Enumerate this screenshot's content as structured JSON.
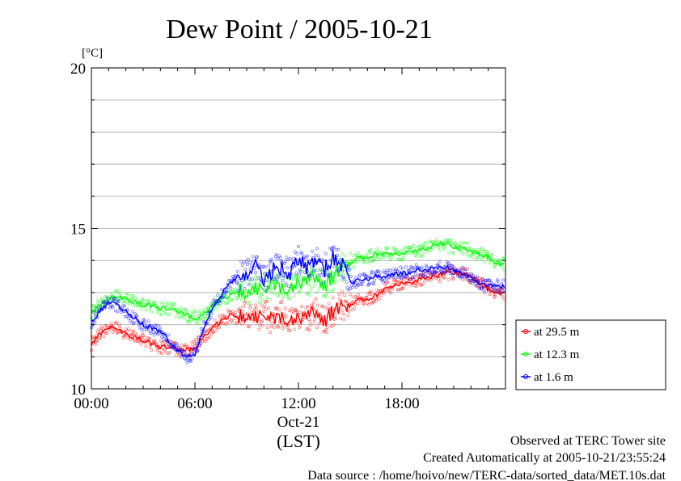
{
  "chart_data": {
    "type": "scatter",
    "title": "Dew Point / 2005-10-21",
    "ylabel": "[°C]",
    "xlabel": "(LST)",
    "x_date_label": "Oct-21",
    "xlim": [
      "00:00",
      "24:00"
    ],
    "ylim": [
      10,
      20
    ],
    "x_ticks": [
      "00:00",
      "06:00",
      "12:00",
      "18:00"
    ],
    "y_ticks": [
      "10",
      "15",
      "20"
    ],
    "grid": true,
    "legend_position": "right",
    "series": [
      {
        "name": "at 29.5 m",
        "color": "#ff0000",
        "x": [
          "00:00",
          "00:30",
          "01:00",
          "01:30",
          "02:00",
          "02:30",
          "03:00",
          "03:30",
          "04:00",
          "04:30",
          "05:00",
          "05:30",
          "06:00",
          "06:30",
          "07:00",
          "07:30",
          "08:00",
          "08:30",
          "09:00",
          "09:30",
          "10:00",
          "10:30",
          "11:00",
          "11:30",
          "12:00",
          "12:30",
          "13:00",
          "13:30",
          "14:00",
          "14:30",
          "15:00",
          "15:30",
          "16:00",
          "16:30",
          "17:00",
          "17:30",
          "18:00",
          "18:30",
          "19:00",
          "19:30",
          "20:00",
          "20:30",
          "21:00",
          "21:30",
          "22:00",
          "22:30",
          "23:00",
          "23:30"
        ],
        "values": [
          11.4,
          11.7,
          11.9,
          11.9,
          11.7,
          11.6,
          11.5,
          11.4,
          11.3,
          11.3,
          11.2,
          11.2,
          11.3,
          11.6,
          11.9,
          12.1,
          12.3,
          12.2,
          12.3,
          12.2,
          12.4,
          12.1,
          12.3,
          12.0,
          12.3,
          12.2,
          12.4,
          12.1,
          12.4,
          12.6,
          12.6,
          12.8,
          12.8,
          12.9,
          13.1,
          13.2,
          13.3,
          13.3,
          13.4,
          13.5,
          13.5,
          13.6,
          13.6,
          13.6,
          13.5,
          13.3,
          13.1,
          13.0
        ]
      },
      {
        "name": "at 12.3 m",
        "color": "#00ff00",
        "x": [
          "00:00",
          "00:30",
          "01:00",
          "01:30",
          "02:00",
          "02:30",
          "03:00",
          "03:30",
          "04:00",
          "04:30",
          "05:00",
          "05:30",
          "06:00",
          "06:30",
          "07:00",
          "07:30",
          "08:00",
          "08:30",
          "09:00",
          "09:30",
          "10:00",
          "10:30",
          "11:00",
          "11:30",
          "12:00",
          "12:30",
          "13:00",
          "13:30",
          "14:00",
          "14:30",
          "15:00",
          "15:30",
          "16:00",
          "16:30",
          "17:00",
          "17:30",
          "18:00",
          "18:30",
          "19:00",
          "19:30",
          "20:00",
          "20:30",
          "21:00",
          "21:30",
          "22:00",
          "22:30",
          "23:00",
          "23:30"
        ],
        "values": [
          12.4,
          12.6,
          12.8,
          12.9,
          12.8,
          12.7,
          12.6,
          12.6,
          12.5,
          12.5,
          12.4,
          12.3,
          12.2,
          12.3,
          12.6,
          12.8,
          12.9,
          13.0,
          13.0,
          13.1,
          13.2,
          13.2,
          13.2,
          13.0,
          13.4,
          13.3,
          13.5,
          13.2,
          13.5,
          13.8,
          13.9,
          14.1,
          14.1,
          14.2,
          14.2,
          14.2,
          14.2,
          14.3,
          14.3,
          14.4,
          14.5,
          14.5,
          14.4,
          14.4,
          14.3,
          14.2,
          14.1,
          13.9
        ]
      },
      {
        "name": "at 1.6 m",
        "color": "#0000ff",
        "x": [
          "00:00",
          "00:30",
          "01:00",
          "01:30",
          "02:00",
          "02:30",
          "03:00",
          "03:30",
          "04:00",
          "04:30",
          "05:00",
          "05:30",
          "06:00",
          "06:30",
          "07:00",
          "07:30",
          "08:00",
          "08:30",
          "09:00",
          "09:30",
          "10:00",
          "10:30",
          "11:00",
          "11:30",
          "12:00",
          "12:30",
          "13:00",
          "13:30",
          "14:00",
          "14:30",
          "15:00",
          "15:30",
          "16:00",
          "16:30",
          "17:00",
          "17:30",
          "18:00",
          "18:30",
          "19:00",
          "19:30",
          "20:00",
          "20:30",
          "21:00",
          "21:30",
          "22:00",
          "22:30",
          "23:00",
          "23:30"
        ],
        "values": [
          12.1,
          12.4,
          12.7,
          12.6,
          12.4,
          12.2,
          12.0,
          11.9,
          11.8,
          11.5,
          11.2,
          11.0,
          11.1,
          11.9,
          12.5,
          12.9,
          13.3,
          13.5,
          13.6,
          13.8,
          13.4,
          13.7,
          13.8,
          13.6,
          14.0,
          13.8,
          14.0,
          13.7,
          14.1,
          13.9,
          13.3,
          13.4,
          13.4,
          13.5,
          13.5,
          13.6,
          13.6,
          13.6,
          13.7,
          13.7,
          13.8,
          13.8,
          13.7,
          13.6,
          13.5,
          13.3,
          13.2,
          13.2
        ]
      }
    ]
  },
  "footer": {
    "site": "Observed at TERC Tower site",
    "created": "Created Automatically at 2005-10-21/23:55:24",
    "source": "Data source : /home/hoivo/new/TERC-data/sorted_data/MET.10s.dat"
  }
}
